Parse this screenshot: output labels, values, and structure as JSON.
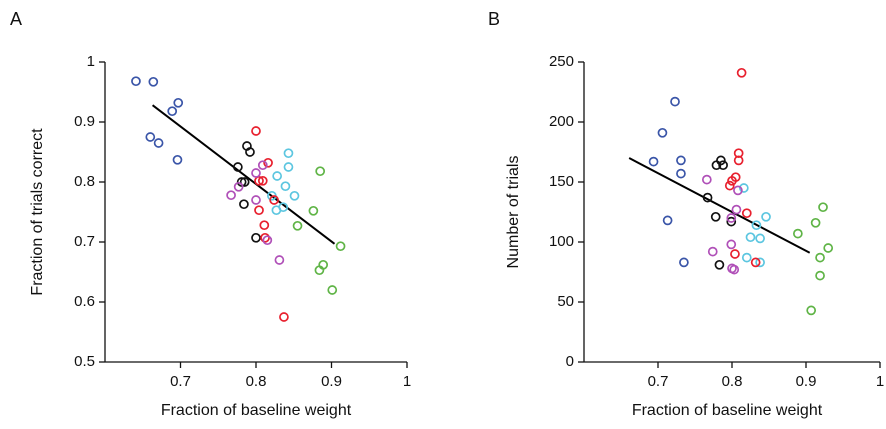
{
  "chart_data": [
    {
      "type": "scatter",
      "panel_label": "A",
      "xlabel": "Fraction of baseline weight",
      "ylabel": "Fraction of trials correct",
      "xlim": [
        0.6,
        1
      ],
      "xticks": [
        0.7,
        0.8,
        0.9,
        1
      ],
      "ylim": [
        0.5,
        1
      ],
      "yticks": [
        0.5,
        0.6,
        0.7,
        0.8,
        0.9,
        1
      ],
      "series": [
        {
          "color": "#3a55a8",
          "x": [
            0.641,
            0.664,
            0.697,
            0.689,
            0.66,
            0.671,
            0.696
          ],
          "values": [
            0.968,
            0.967,
            0.932,
            0.918,
            0.875,
            0.865,
            0.837
          ]
        },
        {
          "color": "#111111",
          "x": [
            0.788,
            0.792,
            0.776,
            0.781,
            0.785,
            0.784,
            0.8
          ],
          "values": [
            0.86,
            0.85,
            0.825,
            0.8,
            0.8,
            0.763,
            0.707
          ]
        },
        {
          "color": "#5cc6e0",
          "x": [
            0.843,
            0.843,
            0.828,
            0.839,
            0.851,
            0.821,
            0.827,
            0.836
          ],
          "values": [
            0.848,
            0.825,
            0.81,
            0.793,
            0.777,
            0.777,
            0.753,
            0.758
          ]
        },
        {
          "color": "#e8202e",
          "x": [
            0.8,
            0.816,
            0.804,
            0.809,
            0.824,
            0.811,
            0.812,
            0.837,
            0.804
          ],
          "values": [
            0.885,
            0.832,
            0.802,
            0.802,
            0.77,
            0.728,
            0.707,
            0.575,
            0.753
          ]
        },
        {
          "color": "#b050b8",
          "x": [
            0.809,
            0.8,
            0.777,
            0.767,
            0.8,
            0.815,
            0.831
          ],
          "values": [
            0.828,
            0.815,
            0.792,
            0.778,
            0.77,
            0.703,
            0.67
          ]
        },
        {
          "color": "#5fb446",
          "x": [
            0.885,
            0.876,
            0.855,
            0.912,
            0.889,
            0.884,
            0.901
          ],
          "values": [
            0.818,
            0.752,
            0.727,
            0.693,
            0.662,
            0.653,
            0.62
          ]
        }
      ],
      "fit": {
        "color": "#000000",
        "x": [
          0.663,
          0.904
        ],
        "values": [
          0.928,
          0.697
        ]
      }
    },
    {
      "type": "scatter",
      "panel_label": "B",
      "xlabel": "Fraction of baseline weight",
      "ylabel": "Number of trials",
      "xlim": [
        0.6,
        1
      ],
      "xticks": [
        0.7,
        0.8,
        0.9,
        1
      ],
      "ylim": [
        0,
        250
      ],
      "yticks": [
        0,
        50,
        100,
        150,
        200,
        250
      ],
      "series": [
        {
          "color": "#3a55a8",
          "x": [
            0.723,
            0.706,
            0.731,
            0.694,
            0.731,
            0.713,
            0.735
          ],
          "values": [
            217,
            191,
            168,
            167,
            157,
            118,
            83
          ]
        },
        {
          "color": "#111111",
          "x": [
            0.785,
            0.788,
            0.779,
            0.767,
            0.778,
            0.799,
            0.783
          ],
          "values": [
            168,
            164,
            164,
            137,
            121,
            117,
            81
          ]
        },
        {
          "color": "#5cc6e0",
          "x": [
            0.816,
            0.846,
            0.833,
            0.825,
            0.838,
            0.82,
            0.838
          ],
          "values": [
            145,
            121,
            114,
            104,
            103,
            87,
            83
          ]
        },
        {
          "color": "#e8202e",
          "x": [
            0.813,
            0.809,
            0.809,
            0.805,
            0.8,
            0.797,
            0.82,
            0.804,
            0.832
          ],
          "values": [
            241,
            174,
            168,
            154,
            151,
            147,
            124,
            90,
            83
          ]
        },
        {
          "color": "#b050b8",
          "x": [
            0.766,
            0.808,
            0.806,
            0.799,
            0.799,
            0.774,
            0.803,
            0.8
          ],
          "values": [
            152,
            143,
            127,
            120,
            98,
            92,
            77,
            78
          ]
        },
        {
          "color": "#5fb446",
          "x": [
            0.923,
            0.913,
            0.889,
            0.93,
            0.919,
            0.919,
            0.907
          ],
          "values": [
            129,
            116,
            107,
            95,
            87,
            72,
            43
          ]
        }
      ],
      "fit": {
        "color": "#000000",
        "x": [
          0.661,
          0.905
        ],
        "values": [
          170,
          91
        ]
      }
    }
  ]
}
